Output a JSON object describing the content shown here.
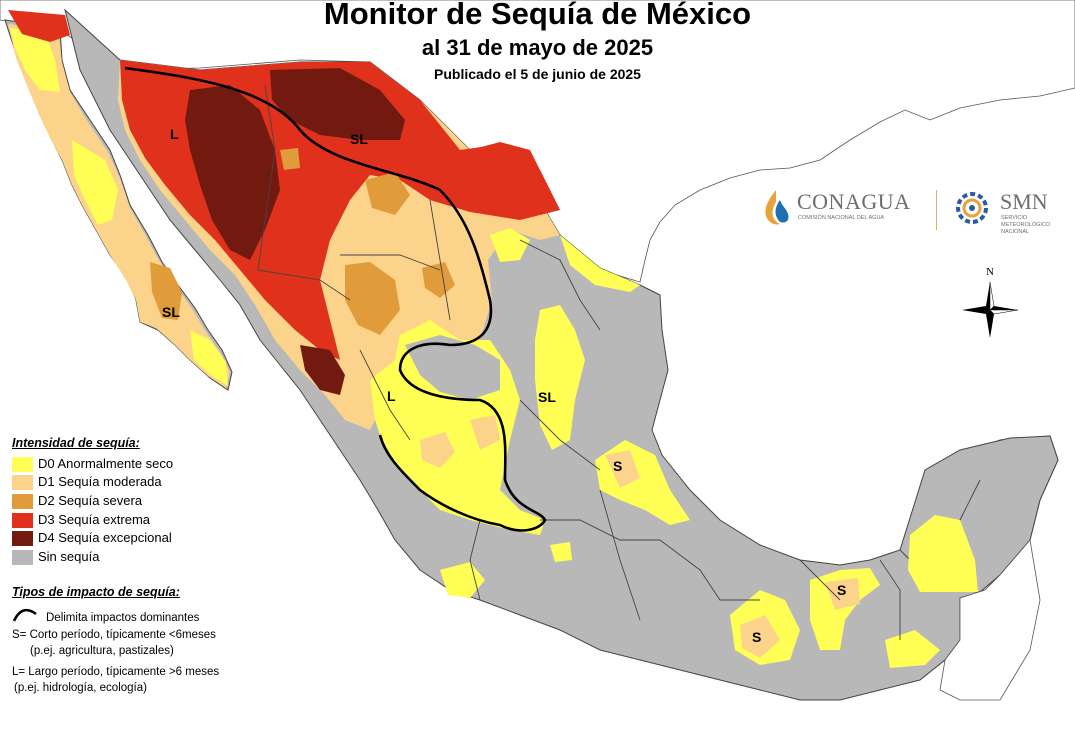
{
  "header": {
    "title": "Monitor de Sequía de México",
    "subtitle": "al 31 de mayo de 2025",
    "published": "Publicado el 5 de junio de 2025"
  },
  "legend": {
    "heading": "Intensidad de sequía:",
    "items": [
      {
        "label": "D0 Anormalmente seco",
        "color": "#ffff55"
      },
      {
        "label": "D1 Sequía moderada",
        "color": "#fcd38b"
      },
      {
        "label": "D2 Sequía severa",
        "color": "#e09c3a"
      },
      {
        "label": "D3 Sequía extrema",
        "color": "#e0311c"
      },
      {
        "label": "D4 Sequía excepcional",
        "color": "#731a10"
      },
      {
        "label": "Sin sequía",
        "color": "#b8b8b8"
      }
    ]
  },
  "impact_legend": {
    "heading": "Tipos de impacto de sequía:",
    "boundary_label": "Delimita impactos dominantes",
    "short_line1": "S= Corto período, típicamente <6meses",
    "short_line2": "(p.ej. agricultura, pastizales)",
    "long_line1": "L= Largo período, típicamente >6 meses",
    "long_line2": "(p.ej. hidrología, ecología)"
  },
  "map_labels": {
    "l_sonora": "L",
    "sl_chihuahua": "SL",
    "sl_baja": "SL",
    "l_durango": "L",
    "sl_huasteca": "SL",
    "s_queretaro": "S",
    "s_oaxaca": "S",
    "s_tabasco": "S"
  },
  "logos": {
    "conagua_name": "CONAGUA",
    "conagua_sub": "COMISIÓN NACIONAL DEL AGUA",
    "smn_name": "SMN",
    "smn_sub1": "SERVICIO",
    "smn_sub2": "METEOROLÓGICO",
    "smn_sub3": "NACIONAL"
  },
  "compass": {
    "north": "N"
  },
  "colors": {
    "ocean": "#ffffff",
    "d0": "#ffff55",
    "d1": "#fcd38b",
    "d2": "#e09c3a",
    "d3": "#e0311c",
    "d4": "#731a10",
    "none": "#b8b8b8",
    "conagua_blue": "#1f6fb2",
    "smn_blue": "#2a5aa8",
    "smn_orange": "#e8a23a"
  }
}
